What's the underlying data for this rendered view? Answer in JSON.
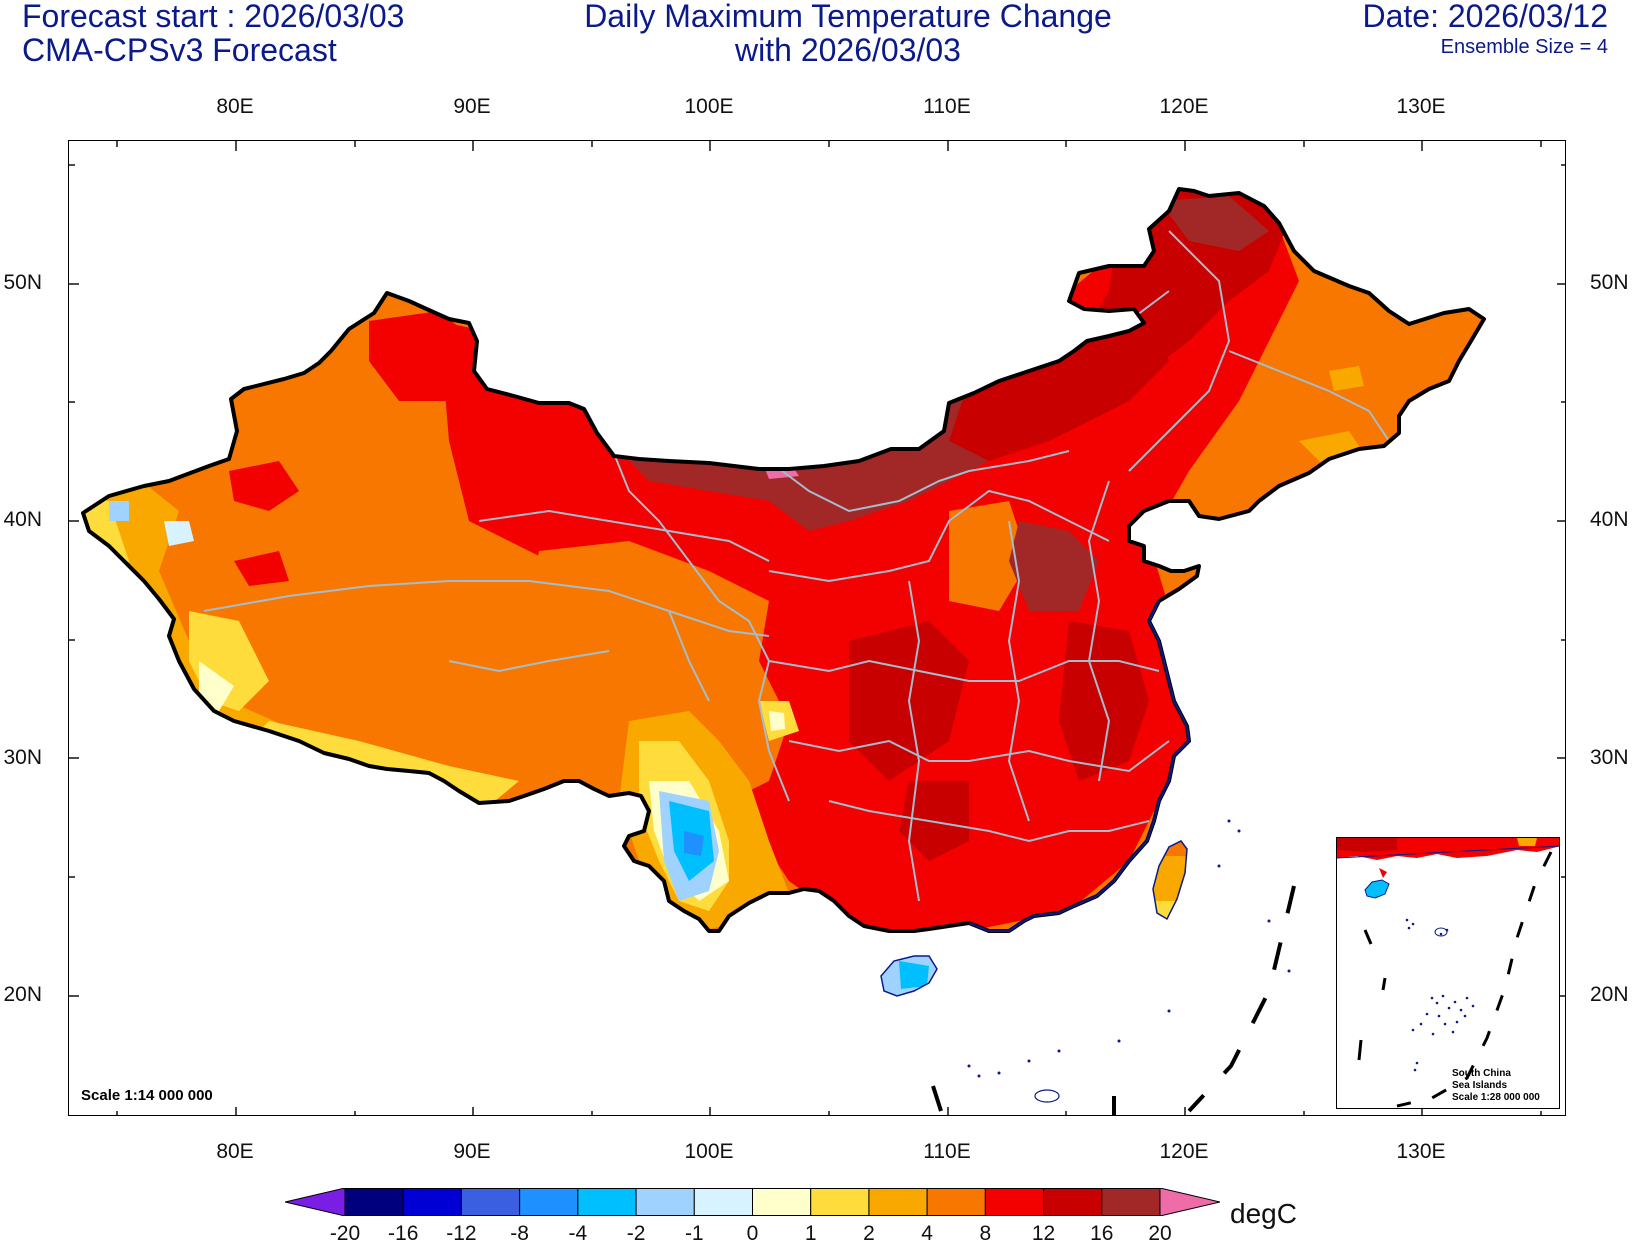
{
  "header": {
    "forecast_start": "Forecast start : 2026/03/03",
    "model": "CMA-CPSv3 Forecast",
    "title_line1": "Daily Maximum Temperature Change",
    "title_line2": "with 2026/03/03",
    "date": "Date: 2026/03/12",
    "ensemble": "Ensemble Size = 4"
  },
  "axes": {
    "longitude_labels": [
      "80E",
      "90E",
      "100E",
      "110E",
      "120E",
      "130E"
    ],
    "latitude_labels": [
      "50N",
      "40N",
      "30N",
      "20N"
    ]
  },
  "map": {
    "scale_note": "Scale 1:14 000 000",
    "inset": {
      "line1": "South China",
      "line2": "Sea Islands",
      "line3": "Scale 1:28 000 000"
    }
  },
  "colorbar": {
    "unit": "degC",
    "tick_labels": [
      "-20",
      "-16",
      "-12",
      "-8",
      "-4",
      "-2",
      "-1",
      "0",
      "1",
      "2",
      "4",
      "8",
      "12",
      "16",
      "20"
    ],
    "colors": [
      "#7a1ee6",
      "#00007f",
      "#0000d4",
      "#3a5fe0",
      "#1e90ff",
      "#00bfff",
      "#a0d2ff",
      "#d6f3ff",
      "#ffffcc",
      "#fddc3c",
      "#f9a800",
      "#f77700",
      "#f30000",
      "#c80000",
      "#a22828",
      "#f06ca8"
    ]
  }
}
